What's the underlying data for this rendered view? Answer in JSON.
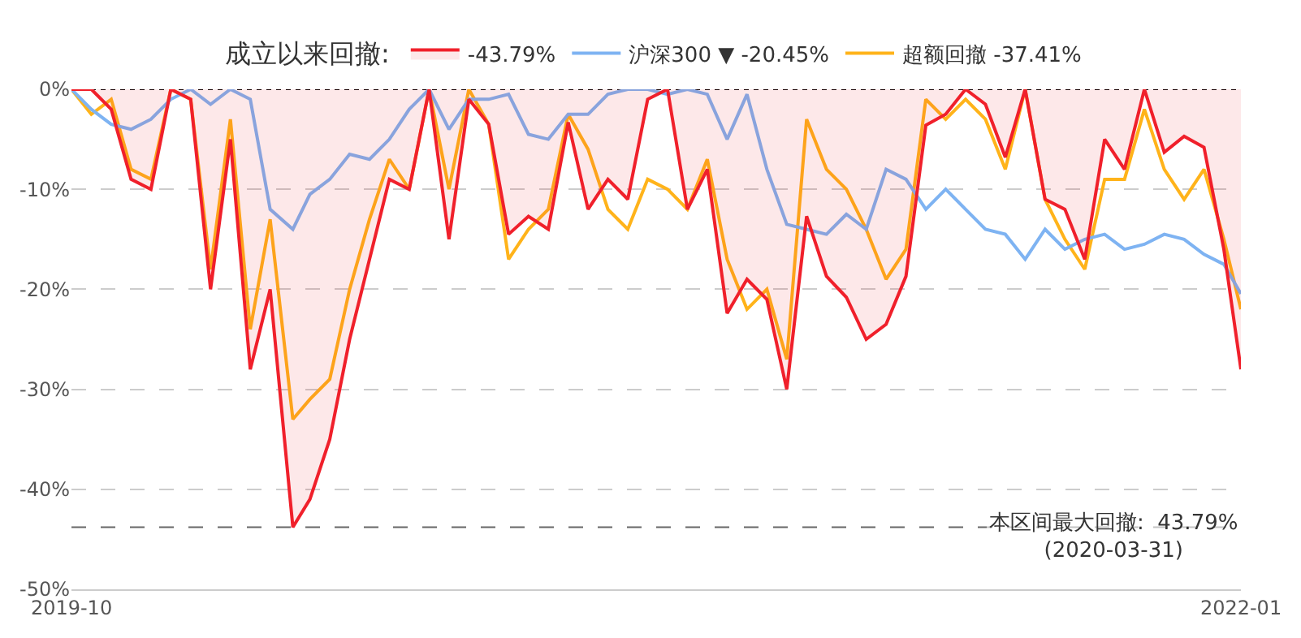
{
  "chart_data": {
    "type": "line",
    "legend_title": "成立以来回撤:",
    "x": [
      "2019-10-27",
      "2019-11-10",
      "2019-11-24",
      "2019-12-08",
      "2019-12-22",
      "2020-01-05",
      "2020-01-19",
      "2020-02-02",
      "2020-02-16",
      "2020-03-01",
      "2020-03-15",
      "2020-03-31",
      "2020-04-12",
      "2020-04-26",
      "2020-05-10",
      "2020-05-24",
      "2020-06-07",
      "2020-06-21",
      "2020-07-05",
      "2020-07-19",
      "2020-08-02",
      "2020-08-16",
      "2020-08-30",
      "2020-09-13",
      "2020-09-27",
      "2020-10-11",
      "2020-10-25",
      "2020-11-08",
      "2020-11-22",
      "2020-12-06",
      "2020-12-20",
      "2021-01-03",
      "2021-01-17",
      "2021-01-31",
      "2021-02-14",
      "2021-02-28",
      "2021-03-14",
      "2021-03-28",
      "2021-04-11",
      "2021-04-25",
      "2021-05-09",
      "2021-05-23",
      "2021-06-06",
      "2021-06-20",
      "2021-07-04",
      "2021-07-18",
      "2021-08-01",
      "2021-08-15",
      "2021-08-29",
      "2021-09-12",
      "2021-09-26",
      "2021-10-10",
      "2021-10-24",
      "2021-11-07",
      "2021-11-21",
      "2021-12-05",
      "2021-12-19",
      "2022-01-02",
      "2022-01-16",
      "2022-01-28"
    ],
    "series": [
      {
        "name": "-43.79%",
        "type": "area",
        "color": "#f0202b",
        "values": [
          0,
          0,
          -2,
          -9,
          -10,
          0,
          -1,
          -20,
          -5,
          -28,
          -20,
          -43.79,
          -41,
          -35,
          -25,
          -17,
          -9,
          -10,
          0,
          -15,
          -1,
          -3.5,
          -14.5,
          -12.7,
          -14,
          -3.3,
          -12,
          -9,
          -11,
          -1,
          0,
          -12,
          -8,
          -22.4,
          -19,
          -21,
          -30,
          -12.7,
          -18.7,
          -20.8,
          -25,
          -23.5,
          -18.7,
          -3.6,
          -2.5,
          0,
          -1.5,
          -6.8,
          0,
          -11,
          -12,
          -17,
          -5,
          -8,
          0,
          -6.3,
          -4.7,
          -5.8,
          -16,
          -28
        ]
      },
      {
        "name": "沪深300 ▼ -20.45%",
        "color": "#7eb3f2",
        "values": [
          0,
          -2,
          -3.5,
          -4,
          -3,
          -1,
          0,
          -1.5,
          0,
          -1,
          -12,
          -14,
          -10.5,
          -9,
          -6.5,
          -7,
          -5,
          -2,
          0,
          -4,
          -1,
          -1,
          -0.5,
          -4.5,
          -5,
          -2.5,
          -2.5,
          -0.5,
          0,
          0,
          -0.5,
          0,
          -0.5,
          -5,
          -0.5,
          -8,
          -13.5,
          -14,
          -14.5,
          -12.5,
          -14,
          -8,
          -9,
          -12,
          -10,
          -12,
          -14,
          -14.5,
          -17,
          -14,
          -16,
          -15,
          -14.5,
          -16,
          -15.5,
          -14.5,
          -15,
          -16.5,
          -17.5,
          -20.45
        ]
      },
      {
        "name": "超额回撤 -37.41%",
        "color": "#ffb31a",
        "values": [
          0,
          -2.5,
          -1,
          -8,
          -9,
          0,
          -1,
          -18,
          -3,
          -24,
          -13,
          -33,
          -31,
          -29,
          -20,
          -13,
          -7,
          -10,
          0,
          -10,
          0,
          -3.5,
          -17,
          -14,
          -12,
          -2.5,
          -6,
          -12,
          -14,
          -9,
          -10,
          -12,
          -7,
          -17,
          -22,
          -20,
          -27,
          -3,
          -8,
          -10,
          -14,
          -19,
          -16,
          -1,
          -3,
          -1,
          -3,
          -8,
          0,
          -11,
          -15,
          -18,
          -9,
          -9,
          -2,
          -8,
          -11,
          -8,
          -15,
          -22
        ]
      }
    ],
    "ylim": [
      -50,
      0
    ],
    "yticks": [
      {
        "value": 0,
        "label": "0%"
      },
      {
        "value": -10,
        "label": "-10%"
      },
      {
        "value": -20,
        "label": "-20%"
      },
      {
        "value": -30,
        "label": "-30%"
      },
      {
        "value": -40,
        "label": "-40%"
      },
      {
        "value": -50,
        "label": "-50%"
      }
    ],
    "xlim": [
      "2019-10-27",
      "2022-01-28"
    ],
    "xticks": [
      {
        "value": "2019-10-27",
        "label": "2019-10"
      },
      {
        "value": "2022-01-28",
        "label": "2022-01"
      }
    ],
    "ref_lines": [
      {
        "axis": "y",
        "value": 0,
        "color": "#000000",
        "line_style": "dotted"
      },
      {
        "axis": "y",
        "value": -43.79,
        "color": "#666666",
        "line_style": "dashed"
      }
    ],
    "annotations": [
      "本区间最大回撤:  43.79%\n(2020-03-31)"
    ],
    "grid": "y",
    "legend": "top",
    "marker": "none",
    "line_style": "solid"
  }
}
